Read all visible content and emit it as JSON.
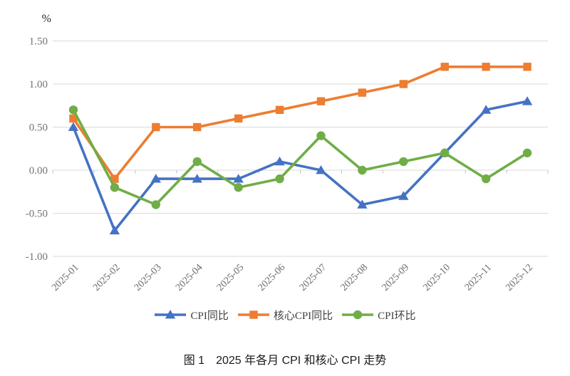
{
  "figure": {
    "unit_label": "%",
    "caption": "图 1　2025 年各月 CPI 和核心 CPI 走势"
  },
  "chart_data": {
    "type": "line",
    "title": "",
    "xlabel": "",
    "ylabel": "%",
    "ylim": [
      -1.0,
      1.5
    ],
    "ytick_step": 0.5,
    "grid": true,
    "legend_position": "bottom",
    "categories": [
      "2025-01",
      "2025-02",
      "2025-03",
      "2025-04",
      "2025-05",
      "2025-06",
      "2025-07",
      "2025-08",
      "2025-09",
      "2025-10",
      "2025-11",
      "2025-12"
    ],
    "yticks": [
      {
        "value": 1.5,
        "label": "1.50"
      },
      {
        "value": 1.0,
        "label": "1.00"
      },
      {
        "value": 0.5,
        "label": "0.50"
      },
      {
        "value": 0.0,
        "label": "0.00"
      },
      {
        "value": -0.5,
        "label": "-0.50"
      },
      {
        "value": -1.0,
        "label": "-1.00"
      }
    ],
    "series": [
      {
        "name": "CPI同比",
        "color": "#4472C4",
        "marker": "triangle",
        "values": [
          0.5,
          -0.7,
          -0.1,
          -0.1,
          -0.1,
          0.1,
          0.0,
          -0.4,
          -0.3,
          0.2,
          0.7,
          0.8
        ]
      },
      {
        "name": "核心CPI同比",
        "color": "#ED7D31",
        "marker": "square",
        "values": [
          0.6,
          -0.1,
          0.5,
          0.5,
          0.6,
          0.7,
          0.8,
          0.9,
          1.0,
          1.2,
          1.2,
          1.2
        ]
      },
      {
        "name": "CPI环比",
        "color": "#70AD47",
        "marker": "circle",
        "values": [
          0.7,
          -0.2,
          -0.4,
          0.1,
          -0.2,
          -0.1,
          0.4,
          0.0,
          0.1,
          0.2,
          -0.1,
          0.2
        ]
      }
    ],
    "colors": {
      "gridline": "#D9D9D9",
      "axis_tick": "#BFBFBF"
    }
  }
}
